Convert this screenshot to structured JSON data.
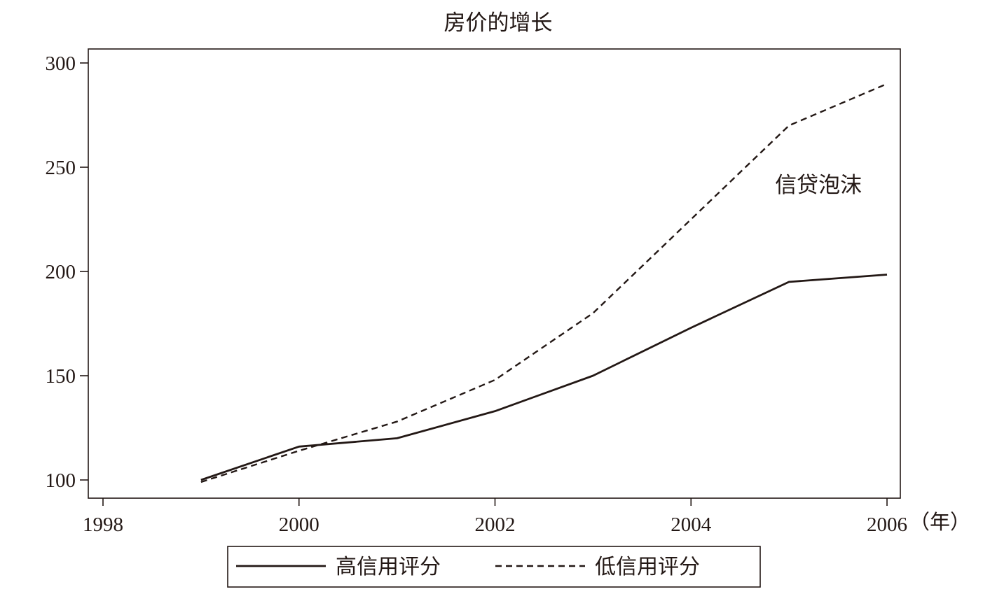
{
  "chart_data": {
    "type": "line",
    "title": "房价的增长",
    "xlabel": "",
    "x_unit_label": "（年）",
    "ylabel": "",
    "xlim": [
      1998,
      2006
    ],
    "ylim": [
      100,
      300
    ],
    "x_ticks": [
      1998,
      2000,
      2002,
      2004,
      2006
    ],
    "y_ticks": [
      100,
      150,
      200,
      250,
      300
    ],
    "x_tick_labels": [
      "1998",
      "2000",
      "2002",
      "2004",
      "2006"
    ],
    "y_tick_labels": [
      "100",
      "150",
      "200",
      "250",
      "300"
    ],
    "grid": false,
    "legend_position": "bottom",
    "annotations": [
      {
        "text": "信贷泡沫",
        "x": 2005.3,
        "y": 238
      }
    ],
    "series": [
      {
        "name": "高信用评分",
        "style": "solid",
        "color": "#231815",
        "points": [
          [
            1999,
            100
          ],
          [
            2000,
            116
          ],
          [
            2001,
            120
          ],
          [
            2002,
            133
          ],
          [
            2003,
            150
          ],
          [
            2004,
            173
          ],
          [
            2005,
            195
          ],
          [
            2006,
            198.5
          ]
        ]
      },
      {
        "name": "低信用评分",
        "style": "dashed",
        "color": "#231815",
        "points": [
          [
            1999,
            99
          ],
          [
            2000,
            114
          ],
          [
            2001,
            128
          ],
          [
            2002,
            148
          ],
          [
            2003,
            180
          ],
          [
            2004,
            225
          ],
          [
            2005,
            270
          ],
          [
            2006,
            290
          ]
        ]
      }
    ]
  }
}
